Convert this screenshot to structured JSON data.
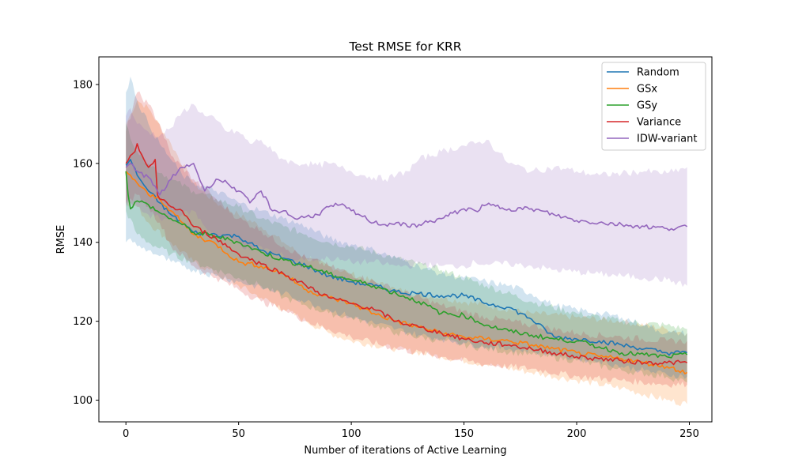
{
  "chart_data": {
    "type": "line",
    "title": "Test RMSE for KRR",
    "xlabel": "Number of iterations of Active Learning",
    "ylabel": "RMSE",
    "xlim": [
      -12,
      260
    ],
    "ylim": [
      94.5,
      187
    ],
    "xticks": [
      0,
      50,
      100,
      150,
      200,
      250
    ],
    "yticks": [
      100,
      120,
      140,
      160,
      180
    ],
    "grid": false,
    "legend_position": "top-right",
    "band_opacity": 0.2,
    "series": [
      {
        "name": "Random",
        "color": "#1f77b4",
        "x": [
          0,
          2,
          5,
          10,
          15,
          20,
          25,
          30,
          40,
          50,
          60,
          70,
          80,
          90,
          100,
          110,
          120,
          130,
          140,
          150,
          160,
          170,
          180,
          190,
          200,
          210,
          220,
          230,
          240,
          249
        ],
        "y": [
          159.5,
          161,
          157,
          153,
          150,
          147,
          145,
          142.5,
          142,
          141.5,
          138,
          136,
          134,
          131.5,
          130,
          129,
          127.5,
          127,
          126.5,
          126.5,
          124.5,
          123.5,
          120.5,
          116,
          115.5,
          115,
          114,
          113,
          112,
          112
        ],
        "upper": [
          178,
          182,
          176,
          170,
          165,
          161,
          157,
          155,
          153,
          150,
          148,
          146,
          144,
          141,
          139.5,
          138,
          136,
          134,
          132,
          131,
          130,
          129,
          127,
          124,
          123,
          122,
          121,
          119,
          117,
          117
        ],
        "lower": [
          140,
          141,
          139,
          138,
          136.5,
          135,
          134,
          133,
          131.5,
          130,
          128.5,
          127,
          125,
          123,
          121,
          119.5,
          118,
          116.5,
          115.5,
          114.5,
          113.5,
          113,
          112.5,
          111.5,
          110.5,
          110,
          108.5,
          107.5,
          106.5,
          106
        ]
      },
      {
        "name": "GSx",
        "color": "#ff7f0e",
        "x": [
          0,
          2,
          5,
          10,
          15,
          20,
          25,
          30,
          40,
          50,
          60,
          70,
          80,
          90,
          100,
          110,
          120,
          130,
          140,
          150,
          160,
          170,
          180,
          190,
          200,
          210,
          220,
          230,
          240,
          249
        ],
        "y": [
          158,
          157,
          155,
          152,
          151,
          148,
          145,
          142,
          139.5,
          135,
          134,
          132,
          128,
          126,
          124.5,
          122,
          120,
          118.5,
          117,
          116,
          115.5,
          115,
          114,
          113,
          112,
          111,
          110.5,
          109.5,
          108.5,
          107
        ]
      },
      {
        "name": "GSy",
        "color": "#2ca02c",
        "x": [
          0,
          1,
          2,
          5,
          10,
          15,
          20,
          25,
          30,
          40,
          50,
          60,
          70,
          80,
          90,
          100,
          110,
          120,
          130,
          140,
          150,
          160,
          170,
          180,
          190,
          200,
          210,
          220,
          230,
          240,
          249
        ],
        "y": [
          158,
          152,
          148.5,
          150.5,
          149.5,
          147.5,
          146,
          144.5,
          142.5,
          141.5,
          140,
          137.5,
          135.5,
          134,
          132,
          130.5,
          129,
          127,
          125,
          122,
          121.5,
          119,
          117.5,
          116.5,
          115.5,
          115,
          113.5,
          112,
          111.5,
          111,
          111.5
        ]
      },
      {
        "name": "Variance",
        "color": "#d62728",
        "x": [
          0,
          2,
          4,
          5,
          8,
          10,
          12,
          13,
          14,
          15,
          20,
          25,
          30,
          40,
          50,
          60,
          70,
          80,
          90,
          100,
          110,
          120,
          130,
          140,
          150,
          160,
          170,
          180,
          190,
          200,
          210,
          220,
          230,
          240,
          249
        ],
        "y": [
          160,
          162,
          163,
          165,
          161,
          159,
          160,
          161,
          152,
          151,
          149,
          148,
          144,
          141,
          137,
          134.5,
          132,
          129,
          126,
          124.5,
          123,
          120,
          118.5,
          117,
          115.5,
          114.5,
          114,
          113,
          112,
          111,
          110.5,
          110,
          109.5,
          109.5,
          109.5
        ]
      },
      {
        "name": "IDW-variant",
        "color": "#9467bd",
        "x": [
          0,
          2,
          5,
          10,
          15,
          20,
          25,
          30,
          35,
          40,
          45,
          50,
          55,
          60,
          65,
          70,
          75,
          80,
          85,
          90,
          95,
          100,
          105,
          110,
          115,
          120,
          125,
          130,
          140,
          150,
          155,
          160,
          170,
          180,
          190,
          200,
          210,
          220,
          230,
          240,
          249
        ],
        "y": [
          159,
          160,
          158,
          156.5,
          152,
          156,
          159,
          160,
          153,
          156,
          155,
          153,
          150,
          153,
          148,
          148,
          146,
          146.5,
          147,
          149,
          149.5,
          148,
          146.5,
          145,
          144.5,
          145,
          144,
          144.5,
          146,
          148.5,
          148,
          149.5,
          148.5,
          148.5,
          147,
          145.5,
          145,
          144.5,
          144,
          143.5,
          144
        ],
        "upper": [
          172,
          174,
          170,
          168,
          167,
          169,
          173,
          175,
          172,
          171,
          168,
          168,
          165,
          166,
          163,
          161,
          160,
          160,
          159.5,
          160,
          159,
          158,
          157,
          156.5,
          156,
          157,
          158,
          161,
          163,
          164.5,
          165,
          166,
          160,
          158,
          159,
          158,
          157,
          157.5,
          158,
          157.5,
          159
        ],
        "lower": [
          149,
          150,
          149,
          147,
          146,
          146,
          147,
          148,
          144,
          142,
          141,
          140,
          138,
          139,
          137.5,
          136.5,
          135.5,
          136,
          135.5,
          136,
          135.5,
          135,
          135,
          135,
          134.5,
          134,
          134,
          134.5,
          134,
          134,
          135,
          134.5,
          134.5,
          134,
          133,
          132.5,
          132,
          131.5,
          131,
          130.5,
          129
        ]
      }
    ],
    "extra_bands": [
      {
        "color": "#ff7f0e",
        "x": [
          0,
          5,
          10,
          20,
          30,
          40,
          50,
          60,
          70,
          80,
          90,
          100,
          120,
          140,
          160,
          180,
          200,
          220,
          240,
          249
        ],
        "upper": [
          170,
          176,
          174,
          165,
          155,
          150,
          147,
          144,
          140,
          136,
          134,
          132,
          128,
          126,
          124,
          122,
          121,
          120,
          118,
          117
        ],
        "lower": [
          150,
          149,
          145,
          140,
          135,
          132,
          129,
          126,
          123,
          120,
          117,
          115,
          113,
          111,
          109,
          107,
          105,
          103,
          100,
          99
        ]
      },
      {
        "color": "#2ca02c",
        "x": [
          0,
          5,
          10,
          20,
          30,
          40,
          50,
          60,
          70,
          80,
          90,
          100,
          120,
          140,
          160,
          180,
          200,
          220,
          240,
          249
        ],
        "upper": [
          170,
          163,
          160,
          156,
          153,
          151,
          149,
          146,
          144,
          142,
          140,
          139,
          136,
          133,
          129,
          125,
          122,
          120,
          119,
          118
        ],
        "lower": [
          148,
          142,
          140,
          137,
          135,
          133,
          131,
          129,
          126,
          124,
          122,
          121,
          117,
          115,
          113,
          111.5,
          110,
          107.5,
          106,
          104.5
        ]
      },
      {
        "color": "#d62728",
        "x": [
          0,
          5,
          10,
          15,
          20,
          30,
          40,
          50,
          60,
          70,
          80,
          90,
          100,
          120,
          140,
          160,
          180,
          200,
          220,
          240,
          249
        ],
        "upper": [
          168,
          178,
          175,
          170,
          162,
          156,
          151,
          146,
          143,
          139,
          136,
          134,
          132,
          128,
          124,
          121,
          119,
          117,
          116,
          115,
          115
        ],
        "lower": [
          150,
          152,
          149,
          145,
          139,
          134,
          131,
          128,
          125,
          123,
          120,
          118,
          116,
          113,
          111,
          109,
          108,
          106,
          105,
          104,
          104
        ]
      }
    ]
  }
}
